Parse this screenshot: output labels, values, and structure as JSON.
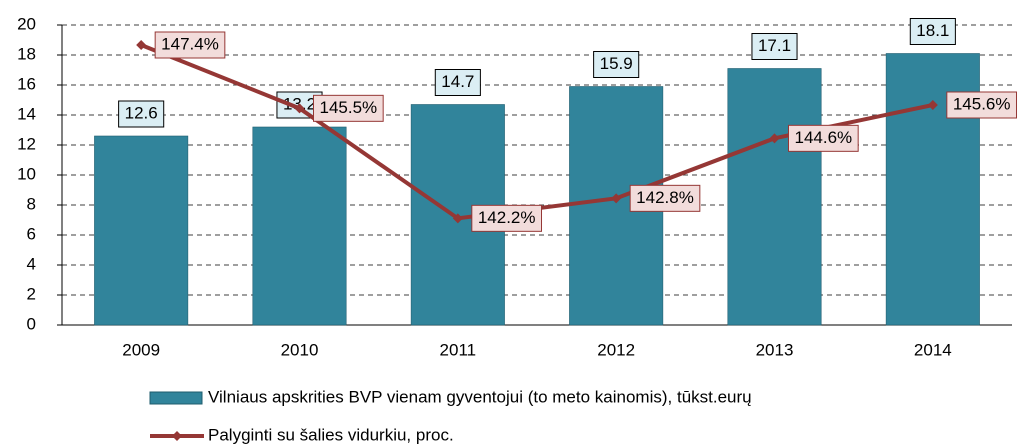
{
  "chart_data": {
    "type": "bar_line",
    "categories": [
      "2009",
      "2010",
      "2011",
      "2012",
      "2013",
      "2014"
    ],
    "series": [
      {
        "name": "Vilniaus apskrities BVP vienam gyventojui (to meto kainomis), tūkst.eurų",
        "type": "bar",
        "color": "#31849b",
        "values": [
          12.6,
          13.2,
          14.7,
          15.9,
          17.1,
          18.1
        ]
      },
      {
        "name": "Palyginti su šalies vidurkiu, proc.",
        "type": "line",
        "axis": "y2",
        "color": "#953735",
        "values": [
          147.4,
          145.5,
          142.2,
          142.8,
          144.6,
          145.6
        ],
        "value_labels": [
          "147.4%",
          "145.5%",
          "142.2%",
          "142.8%",
          "144.6%",
          "145.6%"
        ]
      }
    ],
    "ylim": [
      0,
      20
    ],
    "yticks": [
      0,
      2,
      4,
      6,
      8,
      10,
      12,
      14,
      16,
      18,
      20
    ],
    "y2lim": [
      139,
      148
    ],
    "grid": true,
    "legend": "bottom"
  }
}
